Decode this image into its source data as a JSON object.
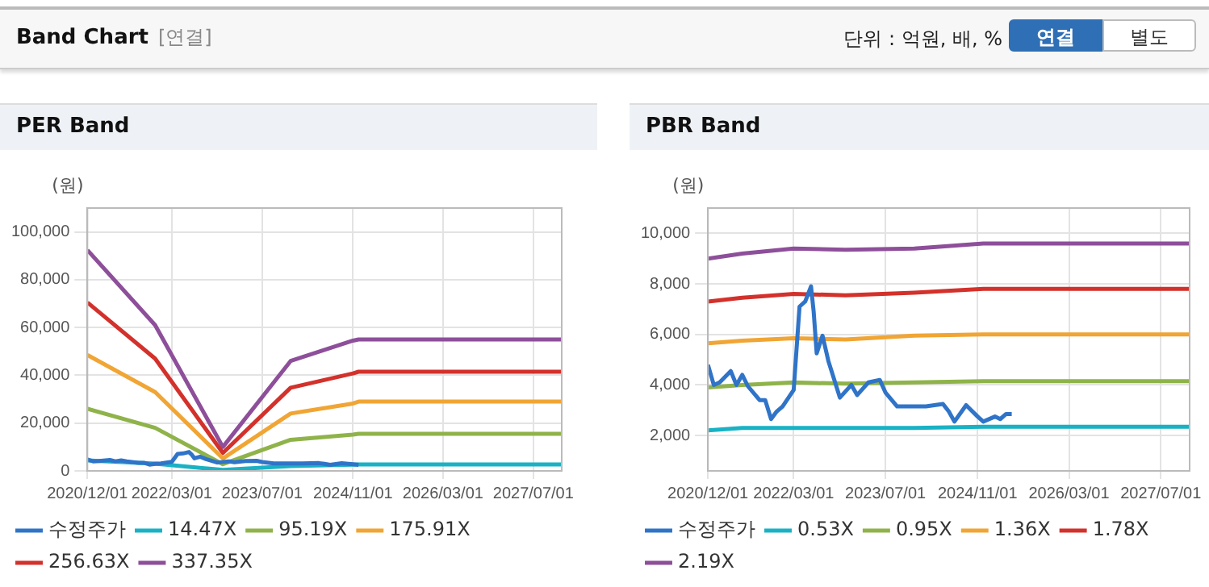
{
  "chart_data": [
    {
      "type": "other",
      "title": "Band Chart",
      "subtitle": "[연결]",
      "annotations": [
        "단위 : 억원, 배, %",
        "연결",
        "별도"
      ]
    },
    {
      "type": "line",
      "title": "PER Band",
      "ylabel": "(원)",
      "x": [
        "2020-12-01",
        "2021-12-01",
        "2022-12-01",
        "2023-12-01",
        "2024-11-01",
        "2024-12-01",
        "2027-12-01"
      ],
      "series": [
        {
          "name": "수정주가",
          "color": "#2f74c8",
          "x": [
            "2020-12-01",
            "2021-01-01",
            "2021-02-01",
            "2021-04-01",
            "2021-05-01",
            "2021-06-01",
            "2021-07-01",
            "2021-09-01",
            "2021-10-01",
            "2021-11-01",
            "2021-12-01",
            "2022-01-01",
            "2022-03-01",
            "2022-04-01",
            "2022-05-01",
            "2022-06-01",
            "2022-06-15",
            "2022-07-01",
            "2022-08-01",
            "2022-09-01",
            "2022-11-01",
            "2023-01-01",
            "2023-02-01",
            "2023-04-01",
            "2023-06-01",
            "2023-07-01",
            "2023-09-01",
            "2024-02-01",
            "2024-05-01",
            "2024-06-01",
            "2024-07-01",
            "2024-09-01",
            "2024-11-01",
            "2024-12-01"
          ],
          "values": [
            4800,
            4000,
            4100,
            4550,
            4000,
            4400,
            3950,
            3400,
            3400,
            2650,
            2950,
            3150,
            3800,
            7100,
            7300,
            7900,
            6900,
            5250,
            5950,
            4950,
            3500,
            4000,
            3600,
            4100,
            4200,
            3700,
            3150,
            3150,
            3250,
            2950,
            2550,
            3200,
            2750,
            2550
          ]
        },
        {
          "name": "14.47X",
          "color": "#19b2c4",
          "values": [
            4400,
            3000,
            430,
            2000,
            2600,
            2700,
            2700
          ]
        },
        {
          "name": "95.19X",
          "color": "#8fb34a",
          "values": [
            26000,
            18000,
            2800,
            13000,
            15200,
            15500,
            15500
          ]
        },
        {
          "name": "175.91X",
          "color": "#f0a534",
          "values": [
            48500,
            33000,
            5200,
            24000,
            28200,
            29000,
            29000
          ]
        },
        {
          "name": "256.63X",
          "color": "#d3312b",
          "values": [
            70500,
            47000,
            7500,
            34800,
            40800,
            41500,
            41500
          ]
        },
        {
          "name": "337.35X",
          "color": "#8e4f9a",
          "values": [
            92400,
            61000,
            10000,
            46000,
            54500,
            55000,
            55000
          ]
        }
      ],
      "xlim": [
        "2020-12-01",
        "2027-12-01"
      ],
      "xticks": [
        {
          "value": "2020-12-01",
          "label": "2020/12/01"
        },
        {
          "value": "2022-03-01",
          "label": "2022/03/01"
        },
        {
          "value": "2023-07-01",
          "label": "2023/07/01"
        },
        {
          "value": "2024-11-01",
          "label": "2024/11/01"
        },
        {
          "value": "2026-03-01",
          "label": "2026/03/01"
        },
        {
          "value": "2027-07-01",
          "label": "2027/07/01"
        }
      ],
      "ylim": [
        0,
        110000
      ],
      "yticks": [
        {
          "value": 0,
          "label": "0"
        },
        {
          "value": 20000,
          "label": "20,000"
        },
        {
          "value": 40000,
          "label": "40,000"
        },
        {
          "value": 60000,
          "label": "60,000"
        },
        {
          "value": 80000,
          "label": "80,000"
        },
        {
          "value": 100000,
          "label": "100,000"
        }
      ],
      "grid": true,
      "legend": "bottom",
      "marker": "none",
      "line_style": "solid"
    },
    {
      "type": "line",
      "title": "PBR Band",
      "ylabel": "(원)",
      "x": [
        "2020-12-01",
        "2021-06-01",
        "2022-03-01",
        "2022-12-01",
        "2023-12-01",
        "2024-12-01",
        "2027-12-01"
      ],
      "series": [
        {
          "name": "수정주가",
          "color": "#2f74c8",
          "x": [
            "2020-12-01",
            "2021-01-01",
            "2021-02-01",
            "2021-04-01",
            "2021-05-01",
            "2021-06-01",
            "2021-07-01",
            "2021-09-01",
            "2021-10-01",
            "2021-11-01",
            "2021-12-01",
            "2022-01-01",
            "2022-03-01",
            "2022-04-01",
            "2022-05-01",
            "2022-06-01",
            "2022-06-15",
            "2022-07-01",
            "2022-08-01",
            "2022-09-01",
            "2022-11-01",
            "2023-01-01",
            "2023-02-01",
            "2023-04-01",
            "2023-06-01",
            "2023-07-01",
            "2023-09-01",
            "2024-02-01",
            "2024-05-01",
            "2024-06-01",
            "2024-07-01",
            "2024-09-01",
            "2024-11-01",
            "2024-12-01",
            "2025-02-01",
            "2025-03-01",
            "2025-04-01",
            "2025-05-01"
          ],
          "values": [
            4800,
            4000,
            4100,
            4550,
            4000,
            4400,
            3950,
            3400,
            3400,
            2650,
            2950,
            3150,
            3800,
            7100,
            7300,
            7900,
            6900,
            5250,
            5950,
            4950,
            3500,
            4000,
            3600,
            4100,
            4200,
            3700,
            3150,
            3150,
            3250,
            2950,
            2550,
            3200,
            2750,
            2550,
            2750,
            2650,
            2850,
            2850
          ]
        },
        {
          "name": "0.53X",
          "color": "#19b2c4",
          "values": [
            2200,
            2300,
            2300,
            2300,
            2300,
            2350,
            2350
          ]
        },
        {
          "name": "0.95X",
          "color": "#8fb34a",
          "values": [
            3900,
            4000,
            4100,
            4050,
            4100,
            4150,
            4150
          ]
        },
        {
          "name": "1.36X",
          "color": "#f0a534",
          "values": [
            5650,
            5750,
            5850,
            5800,
            5950,
            6000,
            6000
          ]
        },
        {
          "name": "1.78X",
          "color": "#d3312b",
          "values": [
            7300,
            7450,
            7600,
            7550,
            7650,
            7800,
            7800
          ]
        },
        {
          "name": "2.19X",
          "color": "#8e4f9a",
          "values": [
            9000,
            9200,
            9400,
            9350,
            9400,
            9600,
            9600
          ]
        }
      ],
      "xlim": [
        "2020-12-01",
        "2027-12-01"
      ],
      "xticks": [
        {
          "value": "2020-12-01",
          "label": "2020/12/01"
        },
        {
          "value": "2022-03-01",
          "label": "2022/03/01"
        },
        {
          "value": "2023-07-01",
          "label": "2023/07/01"
        },
        {
          "value": "2024-11-01",
          "label": "2024/11/01"
        },
        {
          "value": "2026-03-01",
          "label": "2026/03/01"
        },
        {
          "value": "2027-07-01",
          "label": "2027/07/01"
        }
      ],
      "ylim": [
        600,
        11000
      ],
      "yticks": [
        {
          "value": 2000,
          "label": "2,000"
        },
        {
          "value": 4000,
          "label": "4,000"
        },
        {
          "value": 6000,
          "label": "6,000"
        },
        {
          "value": 8000,
          "label": "8,000"
        },
        {
          "value": 10000,
          "label": "10,000"
        }
      ],
      "grid": true,
      "legend": "bottom",
      "marker": "none",
      "line_style": "solid"
    }
  ]
}
